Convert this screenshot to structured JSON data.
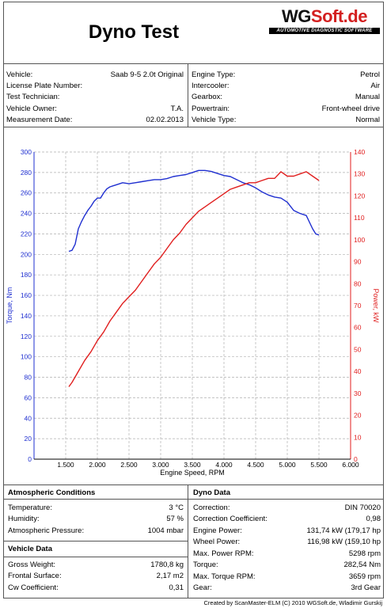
{
  "header": {
    "title": "Dyno Test",
    "logo_main": "WG",
    "logo_accent": "Soft.de",
    "logo_tagline": "AUTOMOTIVE DIAGNOSTIC SOFTWARE"
  },
  "vehicle_info": {
    "left": [
      {
        "label": "Vehicle:",
        "value": "Saab 9-5 2.0t Original"
      },
      {
        "label": "License Plate Number:",
        "value": ""
      },
      {
        "label": "Test Technician:",
        "value": ""
      },
      {
        "label": "Vehicle Owner:",
        "value": "T.A."
      },
      {
        "label": "Measurement Date:",
        "value": "02.02.2013"
      }
    ],
    "right": [
      {
        "label": "Engine Type:",
        "value": "Petrol"
      },
      {
        "label": "Intercooler:",
        "value": "Air"
      },
      {
        "label": "Gearbox:",
        "value": "Manual"
      },
      {
        "label": "Powertrain:",
        "value": "Front-wheel  drive"
      },
      {
        "label": "Vehicle Type:",
        "value": "Normal"
      }
    ]
  },
  "atmospheric": {
    "title": "Atmospheric  Conditions",
    "rows": [
      {
        "label": "Temperature:",
        "value": "3 °C"
      },
      {
        "label": "Humidity:",
        "value": "57 %"
      },
      {
        "label": "Atmospheric Pressure:",
        "value": "1004  mbar"
      }
    ]
  },
  "vehicle_data": {
    "title": "Vehicle Data",
    "rows": [
      {
        "label": "Gross Weight:",
        "value": "1780,8  kg"
      },
      {
        "label": "Frontal Surface:",
        "value": "2,17 m2"
      },
      {
        "label": "Cw Coefficient:",
        "value": "0,31"
      }
    ]
  },
  "dyno_data": {
    "title": "Dyno Data",
    "rows": [
      {
        "label": "Correction:",
        "value": "DIN  70020"
      },
      {
        "label": "Correction  Coefficient:",
        "value": "0,98"
      },
      {
        "label": "Engine Power:",
        "value": "131,74 kW (179,17 hp"
      },
      {
        "label": "Wheel Power:",
        "value": "116,98 kW (159,10 hp"
      },
      {
        "label": "Max. Power RPM:",
        "value": "5298  rpm"
      },
      {
        "label": "Torque:",
        "value": "282,54  Nm"
      },
      {
        "label": "Max. Torque RPM:",
        "value": "3659  rpm"
      },
      {
        "label": "Gear:",
        "value": "3rd Gear"
      }
    ]
  },
  "footer": {
    "credit": "Created by ScanMaster-ELM (C) 2010 WGSoft.de, Wladimir Gurskij"
  },
  "colors": {
    "torque": "#1f2fd0",
    "power": "#e01e1e",
    "grid": "#b0b0b0"
  },
  "chart_data": {
    "type": "line",
    "xlabel": "Engine Speed, RPM",
    "ylabel_left": "Torque, Nm",
    "ylabel_right": "Power, kW",
    "xlim": [
      1000,
      6000
    ],
    "ylim_left": [
      0,
      300
    ],
    "ylim_right": [
      0,
      140
    ],
    "x_ticks": [
      1500,
      2000,
      2500,
      3000,
      3500,
      4000,
      4500,
      5000,
      5500,
      6000
    ],
    "x_tick_labels": [
      "1.500",
      "2.000",
      "2.500",
      "3.000",
      "3.500",
      "4.000",
      "4.500",
      "5.000",
      "5.500",
      "6.000"
    ],
    "y_left_ticks": [
      0,
      20,
      40,
      60,
      80,
      100,
      120,
      140,
      160,
      180,
      200,
      220,
      240,
      260,
      280,
      300
    ],
    "y_right_ticks": [
      0,
      10,
      20,
      30,
      40,
      50,
      60,
      70,
      80,
      90,
      100,
      110,
      120,
      130,
      140
    ],
    "grid": true,
    "series": [
      {
        "name": "Torque, Nm",
        "axis": "left",
        "x": [
          1550,
          1600,
          1650,
          1700,
          1750,
          1800,
          1850,
          1900,
          1950,
          2000,
          2050,
          2100,
          2150,
          2200,
          2250,
          2300,
          2400,
          2500,
          2600,
          2700,
          2800,
          2900,
          3000,
          3100,
          3200,
          3300,
          3400,
          3500,
          3600,
          3700,
          3800,
          3900,
          4000,
          4100,
          4200,
          4300,
          4400,
          4500,
          4600,
          4700,
          4800,
          4900,
          5000,
          5100,
          5200,
          5300,
          5400,
          5450,
          5500
        ],
        "y": [
          203,
          204,
          210,
          225,
          232,
          238,
          243,
          247,
          252,
          255,
          255,
          260,
          264,
          266,
          267,
          268,
          270,
          269,
          270,
          271,
          272,
          273,
          273,
          274,
          276,
          277,
          278,
          280,
          282,
          282,
          281,
          279,
          277,
          276,
          273,
          270,
          268,
          265,
          261,
          258,
          256,
          255,
          251,
          243,
          240,
          238,
          225,
          220,
          219
        ]
      },
      {
        "name": "Power, kW",
        "axis": "right",
        "x": [
          1550,
          1600,
          1700,
          1800,
          1900,
          2000,
          2100,
          2200,
          2300,
          2400,
          2500,
          2600,
          2700,
          2800,
          2900,
          3000,
          3100,
          3200,
          3300,
          3400,
          3500,
          3600,
          3700,
          3800,
          3900,
          4000,
          4100,
          4200,
          4300,
          4400,
          4500,
          4600,
          4700,
          4800,
          4900,
          5000,
          5100,
          5200,
          5300,
          5400,
          5500
        ],
        "y": [
          33,
          35,
          40,
          45,
          49,
          54,
          58,
          63,
          67,
          71,
          74,
          77,
          81,
          85,
          89,
          92,
          96,
          100,
          103,
          107,
          110,
          113,
          115,
          117,
          119,
          121,
          123,
          124,
          125,
          126,
          126,
          127,
          128,
          128,
          131,
          129,
          129,
          130,
          131,
          129,
          127
        ]
      }
    ]
  }
}
